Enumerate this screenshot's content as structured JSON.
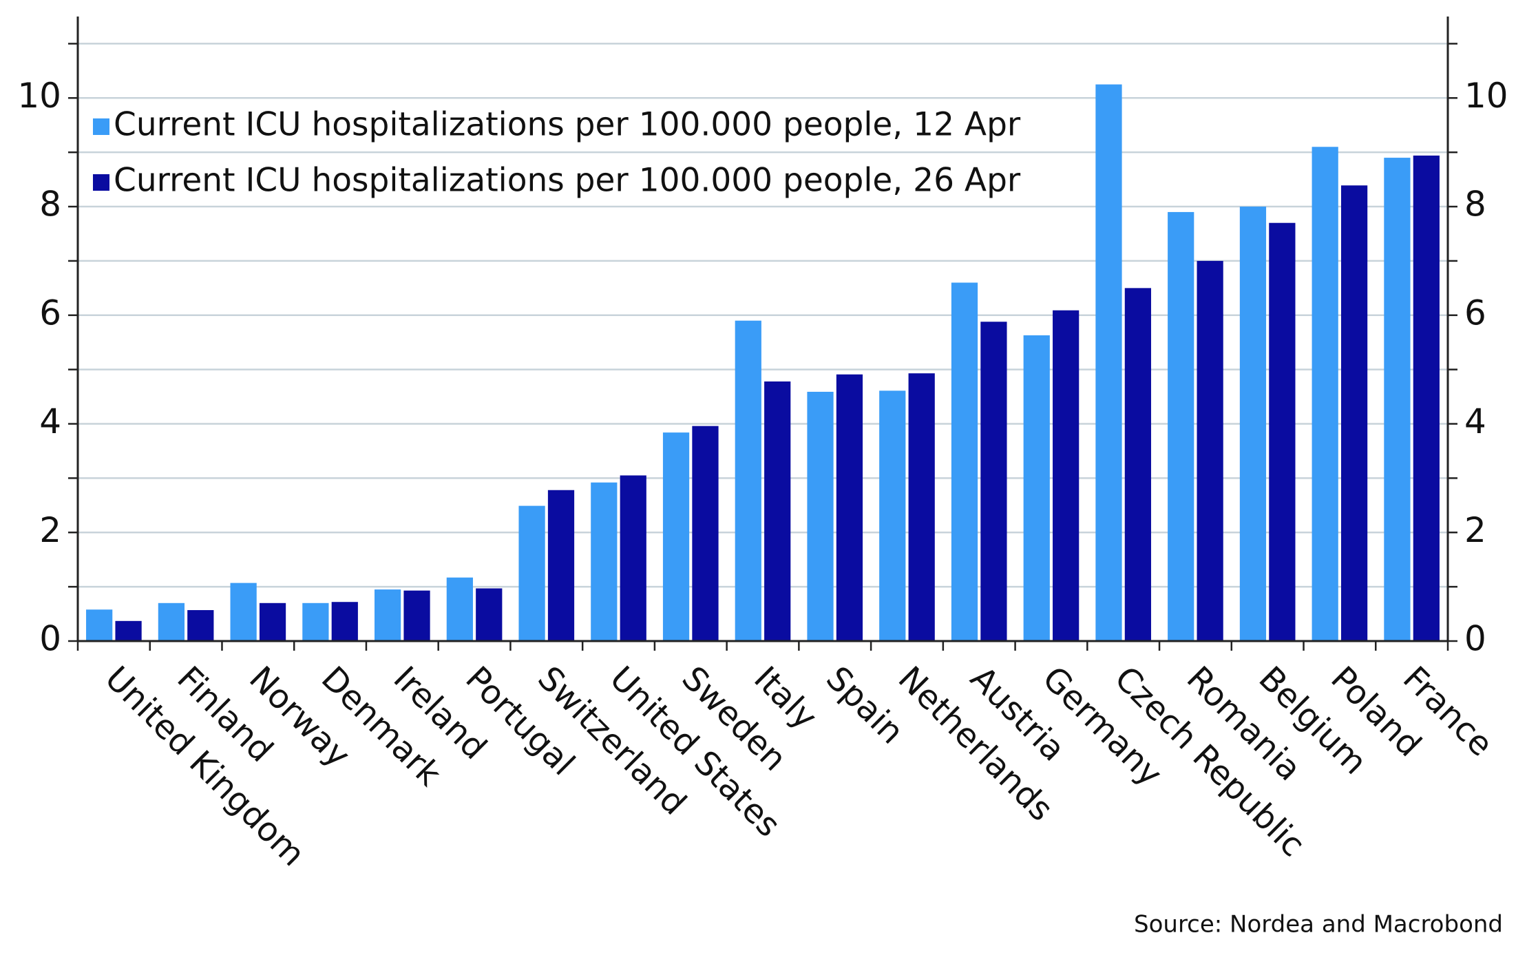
{
  "chart_data": {
    "type": "bar",
    "source": "Source: Nordea and Macrobond",
    "categories": [
      "United Kingdom",
      "Finland",
      "Norway",
      "Denmark",
      "Ireland",
      "Portugal",
      "Switzerland",
      "United States",
      "Sweden",
      "Italy",
      "Spain",
      "Netherlands",
      "Austria",
      "Germany",
      "Czech Republic",
      "Romania",
      "Belgium",
      "Poland",
      "France"
    ],
    "series": [
      {
        "name": "Current ICU hospitalizations per 100.000 people, 12 Apr",
        "color": "#3a9cf7",
        "values": [
          0.58,
          0.7,
          1.07,
          0.7,
          0.95,
          1.17,
          2.49,
          2.92,
          3.84,
          5.9,
          4.59,
          4.61,
          6.6,
          5.63,
          10.25,
          7.9,
          8.0,
          9.1,
          8.9
        ]
      },
      {
        "name": "Current ICU hospitalizations per 100.000 people, 26 Apr",
        "color": "#0a0ca0",
        "values": [
          0.37,
          0.57,
          0.7,
          0.72,
          0.93,
          0.97,
          2.78,
          3.05,
          3.96,
          4.78,
          4.91,
          4.93,
          5.88,
          6.09,
          6.5,
          7.0,
          7.7,
          8.39,
          8.94
        ]
      }
    ],
    "ylim": [
      0,
      11.5
    ],
    "yticks": [
      0,
      2,
      4,
      6,
      8,
      10
    ],
    "minor_yticks": [
      1,
      3,
      5,
      7,
      9,
      11
    ],
    "right_axis_labels": true,
    "grid": true,
    "legend": "upper left"
  }
}
